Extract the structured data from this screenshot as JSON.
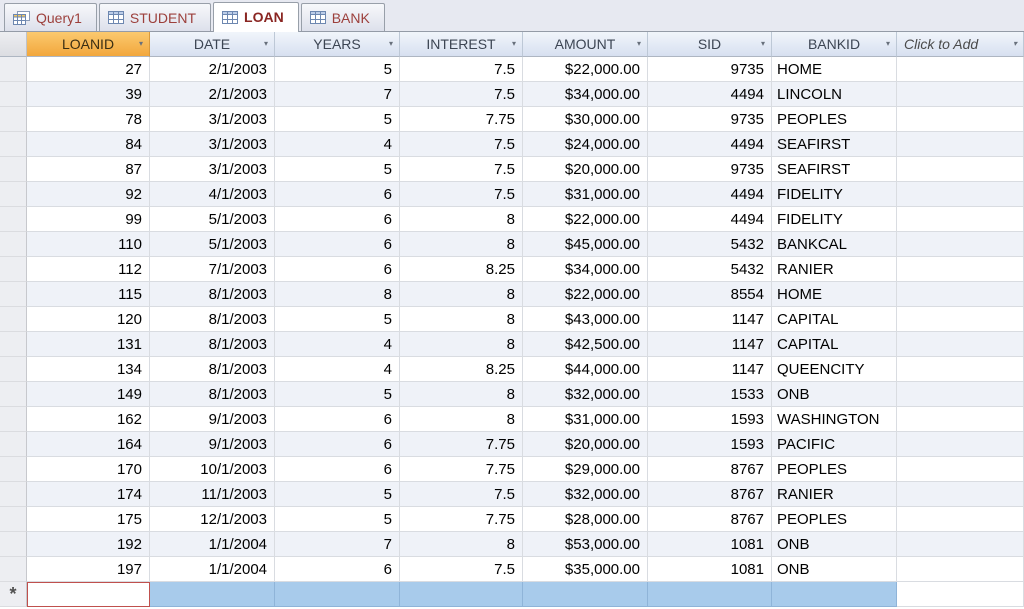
{
  "tabs": [
    {
      "label": "Query1",
      "icon": "query-icon",
      "active": false
    },
    {
      "label": "STUDENT",
      "icon": "table-icon",
      "active": false
    },
    {
      "label": "LOAN",
      "icon": "table-icon",
      "active": true
    },
    {
      "label": "BANK",
      "icon": "table-icon",
      "active": false
    }
  ],
  "table": {
    "columns": [
      "LOANID",
      "DATE",
      "YEARS",
      "INTEREST",
      "AMOUNT",
      "SID",
      "BANKID",
      "Click to Add"
    ],
    "selected_column": "LOANID",
    "new_record_symbol": "*",
    "rows": [
      [
        "27",
        "2/1/2003",
        "5",
        "7.5",
        "$22,000.00",
        "9735",
        "HOME"
      ],
      [
        "39",
        "2/1/2003",
        "7",
        "7.5",
        "$34,000.00",
        "4494",
        "LINCOLN"
      ],
      [
        "78",
        "3/1/2003",
        "5",
        "7.75",
        "$30,000.00",
        "9735",
        "PEOPLES"
      ],
      [
        "84",
        "3/1/2003",
        "4",
        "7.5",
        "$24,000.00",
        "4494",
        "SEAFIRST"
      ],
      [
        "87",
        "3/1/2003",
        "5",
        "7.5",
        "$20,000.00",
        "9735",
        "SEAFIRST"
      ],
      [
        "92",
        "4/1/2003",
        "6",
        "7.5",
        "$31,000.00",
        "4494",
        "FIDELITY"
      ],
      [
        "99",
        "5/1/2003",
        "6",
        "8",
        "$22,000.00",
        "4494",
        "FIDELITY"
      ],
      [
        "110",
        "5/1/2003",
        "6",
        "8",
        "$45,000.00",
        "5432",
        "BANKCAL"
      ],
      [
        "112",
        "7/1/2003",
        "6",
        "8.25",
        "$34,000.00",
        "5432",
        "RANIER"
      ],
      [
        "115",
        "8/1/2003",
        "8",
        "8",
        "$22,000.00",
        "8554",
        "HOME"
      ],
      [
        "120",
        "8/1/2003",
        "5",
        "8",
        "$43,000.00",
        "1147",
        "CAPITAL"
      ],
      [
        "131",
        "8/1/2003",
        "4",
        "8",
        "$42,500.00",
        "1147",
        "CAPITAL"
      ],
      [
        "134",
        "8/1/2003",
        "4",
        "8.25",
        "$44,000.00",
        "1147",
        "QUEENCITY"
      ],
      [
        "149",
        "8/1/2003",
        "5",
        "8",
        "$32,000.00",
        "1533",
        "ONB"
      ],
      [
        "162",
        "9/1/2003",
        "6",
        "8",
        "$31,000.00",
        "1593",
        "WASHINGTON"
      ],
      [
        "164",
        "9/1/2003",
        "6",
        "7.75",
        "$20,000.00",
        "1593",
        "PACIFIC"
      ],
      [
        "170",
        "10/1/2003",
        "6",
        "7.75",
        "$29,000.00",
        "8767",
        "PEOPLES"
      ],
      [
        "174",
        "11/1/2003",
        "5",
        "7.5",
        "$32,000.00",
        "8767",
        "RANIER"
      ],
      [
        "175",
        "12/1/2003",
        "5",
        "7.75",
        "$28,000.00",
        "8767",
        "PEOPLES"
      ],
      [
        "192",
        "1/1/2004",
        "7",
        "8",
        "$53,000.00",
        "1081",
        "ONB"
      ],
      [
        "197",
        "1/1/2004",
        "6",
        "7.5",
        "$35,000.00",
        "1081",
        "ONB"
      ]
    ]
  },
  "colors": {
    "selected_column_header": "#F2A73D",
    "header_bg": "#D7E0F0",
    "tab_text": "#9C3F3B",
    "active_tab_text": "#8A2622",
    "new_record_selection": "#A8CBEB",
    "alt_row": "#EFF2F8",
    "grid_line": "#D9DCE1",
    "active_cell_border": "#C0504D"
  }
}
